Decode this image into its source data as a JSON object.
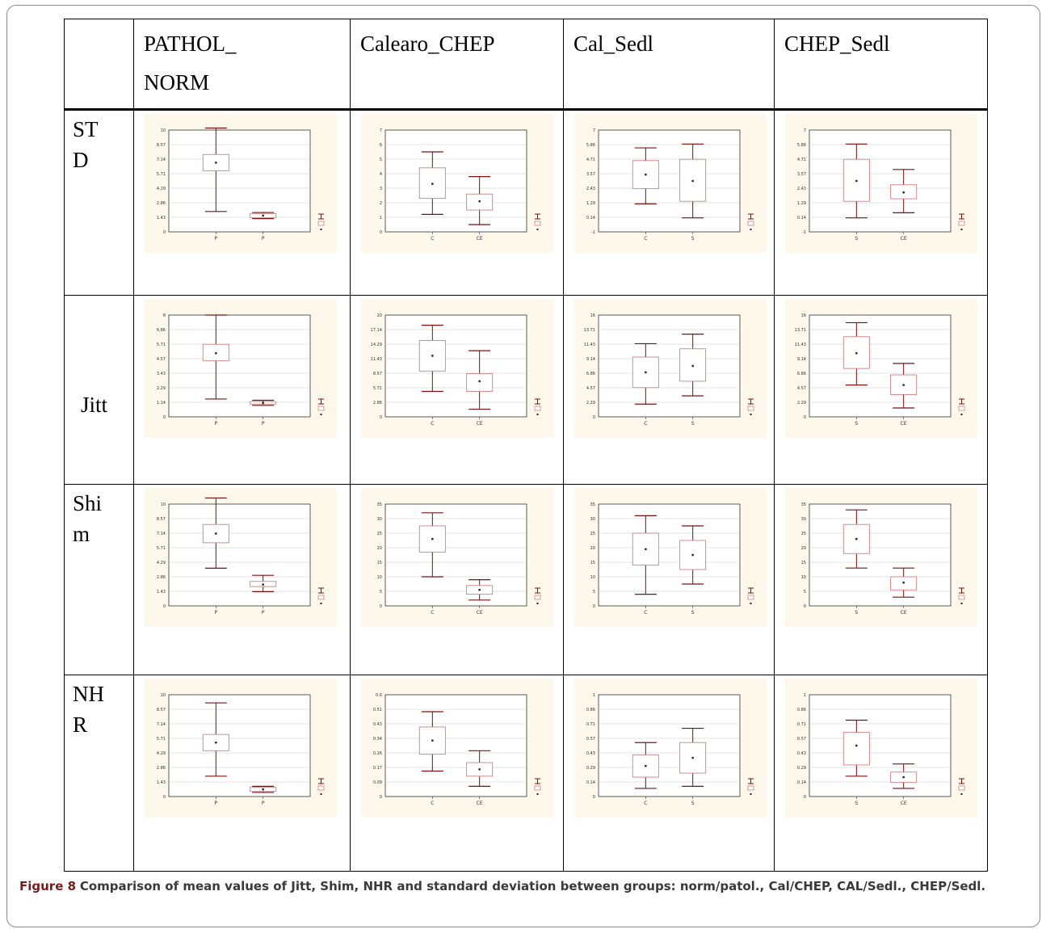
{
  "columns": [
    "",
    "PATHOL_\nNORM",
    "Calearo_CHEP",
    "Cal_Sedl",
    "CHEP_Sedl"
  ],
  "rows": [
    "ST D",
    "Jitt",
    "Shi m",
    "NH R"
  ],
  "chart_data": [
    {
      "type": "box",
      "row": "STD",
      "column": "PATHOL_NORM",
      "categories": [
        "P",
        "P"
      ],
      "ylim": [
        0,
        10
      ],
      "series": [
        {
          "values": [
            {
              "low": 2.0,
              "q1": 6.0,
              "mean": 6.8,
              "q3": 7.6,
              "high": 10.2
            },
            {
              "low": 1.3,
              "q1": 1.4,
              "mean": 1.6,
              "q3": 1.8,
              "high": 1.9
            }
          ]
        }
      ]
    },
    {
      "type": "box",
      "row": "STD",
      "column": "Calearo_CHEP",
      "categories": [
        "C",
        "CE"
      ],
      "ylim": [
        0,
        7
      ],
      "series": [
        {
          "values": [
            {
              "low": 1.2,
              "q1": 2.3,
              "mean": 3.3,
              "q3": 4.4,
              "high": 5.5
            },
            {
              "low": 0.5,
              "q1": 1.5,
              "mean": 2.1,
              "q3": 2.6,
              "high": 3.8
            }
          ]
        }
      ]
    },
    {
      "type": "box",
      "row": "STD",
      "column": "Cal_Sedl",
      "categories": [
        "C",
        "S"
      ],
      "ylim": [
        -1,
        7
      ],
      "series": [
        {
          "values": [
            {
              "low": 1.2,
              "q1": 2.4,
              "mean": 3.5,
              "q3": 4.6,
              "high": 5.6
            },
            {
              "low": 0.1,
              "q1": 1.4,
              "mean": 3.0,
              "q3": 4.7,
              "high": 5.9
            }
          ]
        }
      ]
    },
    {
      "type": "box",
      "row": "STD",
      "column": "CHEP_Sedl",
      "categories": [
        "S",
        "CE"
      ],
      "ylim": [
        -1,
        7
      ],
      "series": [
        {
          "values": [
            {
              "low": 0.1,
              "q1": 1.4,
              "mean": 3.0,
              "q3": 4.7,
              "high": 5.9
            },
            {
              "low": 0.5,
              "q1": 1.6,
              "mean": 2.1,
              "q3": 2.7,
              "high": 3.9
            }
          ]
        }
      ]
    },
    {
      "type": "box",
      "row": "Jitt",
      "column": "PATHOL_NORM",
      "categories": [
        "P",
        "P"
      ],
      "ylim": [
        0,
        8
      ],
      "series": [
        {
          "values": [
            {
              "low": 1.4,
              "q1": 4.4,
              "mean": 5.0,
              "q3": 5.7,
              "high": 8.0
            },
            {
              "low": 0.9,
              "q1": 1.0,
              "mean": 1.1,
              "q3": 1.2,
              "high": 1.3
            }
          ]
        }
      ]
    },
    {
      "type": "box",
      "row": "Jitt",
      "column": "Calearo_CHEP",
      "categories": [
        "C",
        "CE"
      ],
      "ylim": [
        0,
        20
      ],
      "series": [
        {
          "values": [
            {
              "low": 5.0,
              "q1": 9.0,
              "mean": 12.0,
              "q3": 15.0,
              "high": 18.0
            },
            {
              "low": 1.5,
              "q1": 5.0,
              "mean": 7.0,
              "q3": 8.5,
              "high": 13.0
            }
          ]
        }
      ]
    },
    {
      "type": "box",
      "row": "Jitt",
      "column": "Cal_Sedl",
      "categories": [
        "C",
        "S"
      ],
      "ylim": [
        0,
        16
      ],
      "series": [
        {
          "values": [
            {
              "low": 2.0,
              "q1": 4.6,
              "mean": 7.0,
              "q3": 9.4,
              "high": 11.5
            },
            {
              "low": 3.3,
              "q1": 5.6,
              "mean": 8.0,
              "q3": 10.7,
              "high": 13.0
            }
          ]
        }
      ]
    },
    {
      "type": "box",
      "row": "Jitt",
      "column": "CHEP_Sedl",
      "categories": [
        "S",
        "CE"
      ],
      "ylim": [
        0,
        16
      ],
      "series": [
        {
          "values": [
            {
              "low": 5.0,
              "q1": 7.6,
              "mean": 10.0,
              "q3": 12.6,
              "high": 14.8
            },
            {
              "low": 1.4,
              "q1": 3.5,
              "mean": 5.0,
              "q3": 6.6,
              "high": 8.4
            }
          ]
        }
      ]
    },
    {
      "type": "box",
      "row": "Shim",
      "column": "PATHOL_NORM",
      "categories": [
        "P",
        "P"
      ],
      "ylim": [
        0,
        10
      ],
      "series": [
        {
          "values": [
            {
              "low": 3.7,
              "q1": 6.2,
              "mean": 7.1,
              "q3": 8.0,
              "high": 10.6
            },
            {
              "low": 1.4,
              "q1": 1.9,
              "mean": 2.1,
              "q3": 2.4,
              "high": 3.0
            }
          ]
        }
      ]
    },
    {
      "type": "box",
      "row": "Shim",
      "column": "Calearo_CHEP",
      "categories": [
        "C",
        "CE"
      ],
      "ylim": [
        0,
        35
      ],
      "series": [
        {
          "values": [
            {
              "low": 10.0,
              "q1": 18.5,
              "mean": 23.0,
              "q3": 27.5,
              "high": 32.0
            },
            {
              "low": 2.0,
              "q1": 4.0,
              "mean": 5.5,
              "q3": 7.0,
              "high": 9.0
            }
          ]
        }
      ]
    },
    {
      "type": "box",
      "row": "Shim",
      "column": "Cal_Sedl",
      "categories": [
        "C",
        "S"
      ],
      "ylim": [
        0,
        35
      ],
      "series": [
        {
          "values": [
            {
              "low": 4.0,
              "q1": 14.0,
              "mean": 19.5,
              "q3": 25.0,
              "high": 31.0
            },
            {
              "low": 7.5,
              "q1": 12.5,
              "mean": 17.5,
              "q3": 22.5,
              "high": 27.5
            }
          ]
        }
      ]
    },
    {
      "type": "box",
      "row": "Shim",
      "column": "CHEP_Sedl",
      "categories": [
        "S",
        "CE"
      ],
      "ylim": [
        0,
        35
      ],
      "series": [
        {
          "values": [
            {
              "low": 13.0,
              "q1": 18.0,
              "mean": 23.0,
              "q3": 28.0,
              "high": 33.0
            },
            {
              "low": 3.0,
              "q1": 5.5,
              "mean": 8.0,
              "q3": 10.0,
              "high": 13.0
            }
          ]
        }
      ]
    },
    {
      "type": "box",
      "row": "NHR",
      "column": "PATHOL_NORM",
      "categories": [
        "P",
        "P"
      ],
      "ylim": [
        0,
        10
      ],
      "series": [
        {
          "values": [
            {
              "low": 2.0,
              "q1": 4.5,
              "mean": 5.3,
              "q3": 6.1,
              "high": 9.2
            },
            {
              "low": 0.4,
              "q1": 0.5,
              "mean": 0.7,
              "q3": 0.9,
              "high": 1.0
            }
          ]
        }
      ]
    },
    {
      "type": "box",
      "row": "NHR",
      "column": "Calearo_CHEP",
      "categories": [
        "C",
        "CE"
      ],
      "ylim": [
        0,
        0.6
      ],
      "series": [
        {
          "values": [
            {
              "low": 0.15,
              "q1": 0.25,
              "mean": 0.33,
              "q3": 0.41,
              "high": 0.5
            },
            {
              "low": 0.06,
              "q1": 0.12,
              "mean": 0.16,
              "q3": 0.2,
              "high": 0.27
            }
          ]
        }
      ]
    },
    {
      "type": "box",
      "row": "NHR",
      "column": "Cal_Sedl",
      "categories": [
        "C",
        "S"
      ],
      "ylim": [
        0,
        1
      ],
      "series": [
        {
          "values": [
            {
              "low": 0.08,
              "q1": 0.19,
              "mean": 0.3,
              "q3": 0.41,
              "high": 0.53
            },
            {
              "low": 0.1,
              "q1": 0.23,
              "mean": 0.38,
              "q3": 0.53,
              "high": 0.67
            }
          ]
        }
      ]
    },
    {
      "type": "box",
      "row": "NHR",
      "column": "CHEP_Sedl",
      "categories": [
        "S",
        "CE"
      ],
      "ylim": [
        0,
        1
      ],
      "series": [
        {
          "values": [
            {
              "low": 0.2,
              "q1": 0.31,
              "mean": 0.5,
              "q3": 0.63,
              "high": 0.75
            },
            {
              "low": 0.08,
              "q1": 0.14,
              "mean": 0.19,
              "q3": 0.24,
              "high": 0.32
            }
          ]
        }
      ]
    }
  ],
  "caption": {
    "label": "Figure 8",
    "text": "Comparison of mean values of Jitt, Shim, NHR and standard deviation between groups: norm/patol., Cal/CHEP, CAL/Sedl., CHEP/Sedl."
  }
}
